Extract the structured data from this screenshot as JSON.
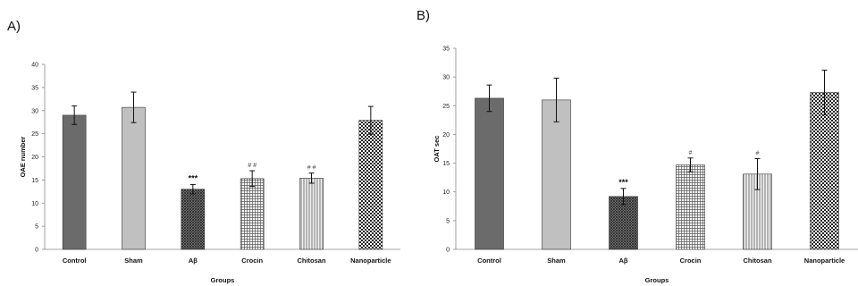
{
  "chart_data": [
    {
      "type": "bar",
      "panel_label": "A)",
      "categories": [
        "Control",
        "Sham",
        "Aβ",
        "Crocin",
        "Chitosan",
        "Nanoparticle"
      ],
      "values": [
        29,
        30.7,
        13,
        15.3,
        15.4,
        27.9
      ],
      "errors": [
        2.0,
        3.3,
        1.0,
        1.7,
        1.1,
        3.0
      ],
      "significance": [
        "",
        "",
        "***",
        "# #",
        "# #",
        ""
      ],
      "patterns": [
        "dark",
        "light",
        "diag",
        "grid",
        "vlines",
        "check"
      ],
      "xlabel": "Groups",
      "ylabel": "OAE number",
      "ylim": [
        0,
        40
      ],
      "yticks": [
        0,
        5,
        10,
        15,
        20,
        25,
        30,
        35,
        40
      ],
      "grid": false
    },
    {
      "type": "bar",
      "panel_label": "B)",
      "categories": [
        "Control",
        "Sham",
        "Aβ",
        "Crocin",
        "Chitosan",
        "Nanoparticle"
      ],
      "values": [
        26.3,
        26.0,
        9.2,
        14.7,
        13.1,
        27.3
      ],
      "errors": [
        2.3,
        3.8,
        1.4,
        1.2,
        2.7,
        3.9
      ],
      "significance": [
        "",
        "",
        "***",
        "#",
        "#",
        ""
      ],
      "patterns": [
        "dark",
        "light",
        "diag",
        "grid",
        "vlines",
        "check"
      ],
      "xlabel": "Groups",
      "ylabel": "OAT sec",
      "ylim": [
        0,
        35
      ],
      "yticks": [
        0,
        5,
        10,
        15,
        20,
        25,
        30,
        35
      ],
      "grid": false
    }
  ]
}
